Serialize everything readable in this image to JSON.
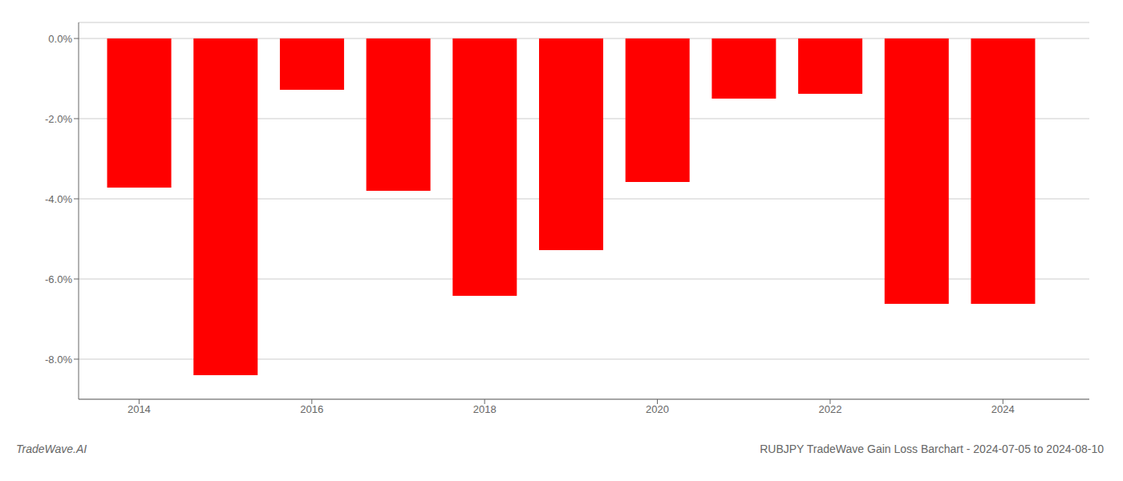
{
  "chart_data": {
    "type": "bar",
    "title": "RUBJPY TradeWave Gain Loss Barchart - 2024-07-05 to 2024-08-10",
    "annotations": [
      "TradeWave.AI"
    ],
    "x": [
      2014,
      2015,
      2016,
      2017,
      2018,
      2019,
      2020,
      2021,
      2022,
      2023,
      2024
    ],
    "values": [
      -3.72,
      -8.4,
      -1.28,
      -3.8,
      -6.42,
      -5.28,
      -3.58,
      -1.5,
      -1.38,
      -6.62,
      -6.62
    ],
    "color": "#ff0000",
    "xlim": [
      2013.3,
      2025.0
    ],
    "xticks": [
      2014,
      2016,
      2018,
      2020,
      2022,
      2024
    ],
    "ylim": [
      -9.0,
      0.4
    ],
    "yticks": [
      {
        "value": 0.0,
        "label": "0.0%"
      },
      {
        "value": -2.0,
        "label": "-2.0%"
      },
      {
        "value": -4.0,
        "label": "-4.0%"
      },
      {
        "value": -6.0,
        "label": "-6.0%"
      },
      {
        "value": -8.0,
        "label": "-8.0%"
      }
    ],
    "grid": true
  }
}
